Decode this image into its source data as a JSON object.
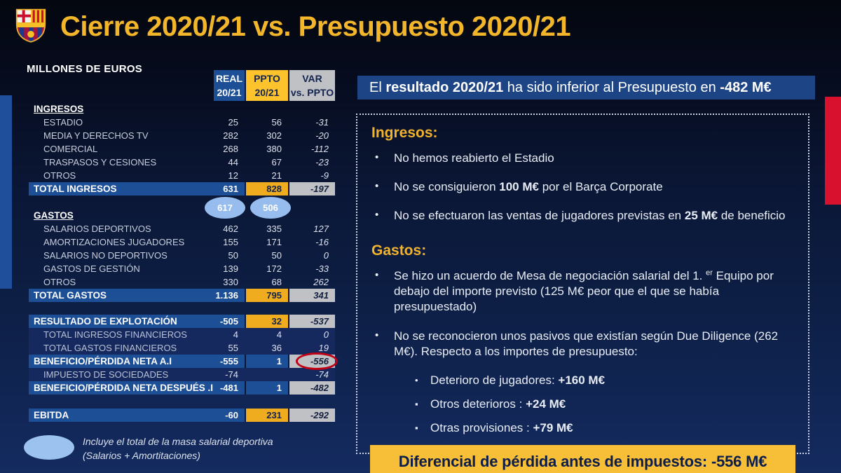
{
  "header": {
    "title": "Cierre 2020/21 vs. Presupuesto 2020/21",
    "units": "MILLONES DE EUROS",
    "crest": "fc-barcelona-crest"
  },
  "table": {
    "col_headers": [
      {
        "line1": "REAL",
        "line2": "20/21"
      },
      {
        "line1": "PPTO",
        "line2": "20/21"
      },
      {
        "line1": "VAR",
        "line2": "vs. PPTO"
      }
    ],
    "overlays": {
      "gastos_real_badge": "617",
      "gastos_ppto_badge": "506"
    },
    "rows": [
      {
        "kind": "section",
        "label": "INGRESOS"
      },
      {
        "kind": "item",
        "label": "ESTADIO",
        "real": "25",
        "ppto": "56",
        "var": "-31"
      },
      {
        "kind": "item",
        "label": "MEDIA Y DERECHOS TV",
        "real": "282",
        "ppto": "302",
        "var": "-20"
      },
      {
        "kind": "item",
        "label": "COMERCIAL",
        "real": "268",
        "ppto": "380",
        "var": "-112"
      },
      {
        "kind": "item",
        "label": "TRASPASOS Y CESIONES",
        "real": "44",
        "ppto": "67",
        "var": "-23"
      },
      {
        "kind": "item",
        "label": "OTROS",
        "real": "12",
        "ppto": "21",
        "var": "-9"
      },
      {
        "kind": "total",
        "label": "TOTAL INGRESOS",
        "real": "631",
        "ppto": "828",
        "var": "-197",
        "gold_ppto": true
      },
      {
        "kind": "section",
        "label": "GASTOS",
        "gap_before": 19
      },
      {
        "kind": "item",
        "label": "SALARIOS DEPORTIVOS",
        "real": "462",
        "ppto": "335",
        "var": "127"
      },
      {
        "kind": "item",
        "label": "AMORTIZACIONES JUGADORES",
        "real": "155",
        "ppto": "171",
        "var": "-16"
      },
      {
        "kind": "item",
        "label": "SALARIOS NO DEPORTIVOS",
        "real": "50",
        "ppto": "50",
        "var": "0"
      },
      {
        "kind": "item",
        "label": "GASTOS DE GESTIÓN",
        "real": "139",
        "ppto": "172",
        "var": "-33"
      },
      {
        "kind": "item",
        "label": "OTROS",
        "real": "330",
        "ppto": "68",
        "var": "262"
      },
      {
        "kind": "total",
        "label": "TOTAL GASTOS",
        "real": "1.136",
        "ppto": "795",
        "var": "341",
        "gold_ppto": true
      },
      {
        "kind": "total",
        "label": "RESULTADO DE EXPLOTACIÓN",
        "real": "-505",
        "ppto": "32",
        "var": "-537",
        "gold_ppto": true,
        "gap_before": 18
      },
      {
        "kind": "sub",
        "label": "TOTAL INGRESOS FINANCIEROS",
        "real": "4",
        "ppto": "4",
        "var": "0"
      },
      {
        "kind": "sub",
        "label": "TOTAL GASTOS FINANCIEROS",
        "real": "55",
        "ppto": "36",
        "var": "19"
      },
      {
        "kind": "total",
        "label": "BENEFICIO/PÉRDIDA NETA A.I",
        "real": "-555",
        "ppto": "1",
        "var": "-556",
        "circled_var": true
      },
      {
        "kind": "sub",
        "label": "IMPUESTO DE SOCIEDADES",
        "real": "-74",
        "ppto": "",
        "var": "-74"
      },
      {
        "kind": "total",
        "label": "BENEFICIO/PÉRDIDA NETA DESPUÉS .I",
        "real": "-481",
        "ppto": "1",
        "var": "-482"
      },
      {
        "kind": "total",
        "label": "EBITDA",
        "real": "-60",
        "ppto": "231",
        "var": "-292",
        "gold_ppto": true,
        "gap_before": 20
      }
    ]
  },
  "legend": {
    "line1": "Incluye el total de la masa salarial deportiva",
    "line2": "(Salarios + Amortitaciones)"
  },
  "result_banner": {
    "segments": [
      {
        "t": "El "
      },
      {
        "t": "resultado 2020/21",
        "b": true
      },
      {
        "t": " ha sido inferior al Presupuesto en "
      },
      {
        "t": "-482 M€",
        "b": true
      }
    ]
  },
  "panel": {
    "ingresos_heading": "Ingresos:",
    "ingresos_bullets": [
      [
        {
          "t": "No hemos reabierto el Estadio"
        }
      ],
      [
        {
          "t": "No se consiguieron "
        },
        {
          "t": "100 M€",
          "b": true
        },
        {
          "t": " por el Barça Corporate"
        }
      ],
      [
        {
          "t": "No se efectuaron las ventas de jugadores previstas en "
        },
        {
          "t": "25 M€",
          "b": true
        },
        {
          "t": " de beneficio"
        }
      ]
    ],
    "gastos_heading": "Gastos:",
    "gastos_bullets": [
      [
        {
          "t": "Se hizo un acuerdo de Mesa de negociación salarial del 1. "
        },
        {
          "t": "er",
          "sup": true
        },
        {
          "t": " Equipo por debajo del importe previsto (125 M€ peor que el que se había presupuestado)"
        }
      ],
      [
        {
          "t": "No se reconocieron unos pasivos que existían según Due Diligence (262 M€). Respecto a los importes de presupuesto:"
        }
      ]
    ],
    "sub_bullets": [
      {
        "marker": "•",
        "segments": [
          {
            "t": "Deterioro de jugadores: "
          },
          {
            "t": "+160 M€",
            "b": true
          }
        ]
      },
      {
        "marker": "▪",
        "segments": [
          {
            "t": "Otros deterioros : "
          },
          {
            "t": "+24 M€",
            "b": true
          }
        ]
      },
      {
        "marker": "▪",
        "segments": [
          {
            "t": "Otras provisiones : "
          },
          {
            "t": "+79 M€",
            "b": true
          }
        ]
      }
    ],
    "diff_banner": "Diferencial de pérdida antes de impuestos: -556 M€"
  },
  "colors": {
    "gold": "#f2b32c",
    "header_gold": "#fcc32d",
    "total_gold": "#efac1e",
    "blue_cell": "#1d4f97",
    "banner_blue": "#1d4586",
    "gray_cell": "#bfc1c5",
    "badge_blue": "#96bdee",
    "red_accent": "#d8112f",
    "red_circle": "#c10016"
  }
}
